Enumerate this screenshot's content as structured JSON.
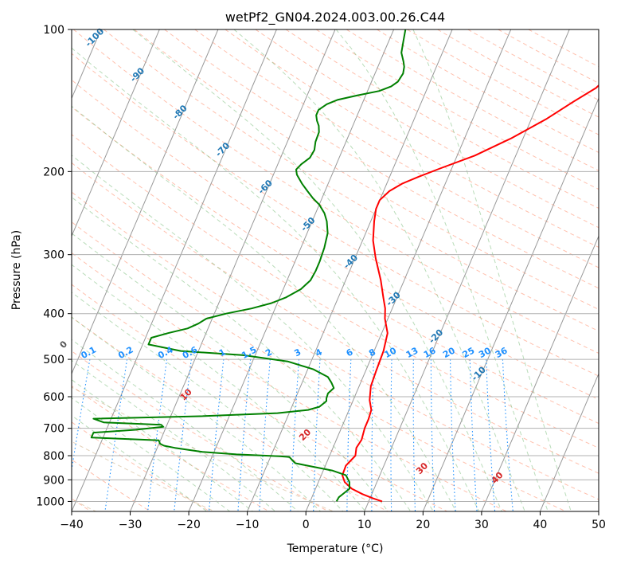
{
  "chart_data": {
    "type": "line",
    "title": "wetPf2_GN04.2024.003.00.26.C44",
    "xlabel": "Temperature (°C)",
    "ylabel": "Pressure (hPa)",
    "xlim": [
      -40,
      50
    ],
    "ylim": [
      1050,
      100
    ],
    "y_scale": "log",
    "grid": true,
    "x_ticks": [
      "−40",
      "−30",
      "−20",
      "−10",
      "0",
      "10",
      "20",
      "30",
      "40",
      "50"
    ],
    "y_ticks": [
      "100",
      "200",
      "300",
      "400",
      "500",
      "600",
      "700",
      "800",
      "900",
      "1000"
    ],
    "series": [
      {
        "color": "#ff0000",
        "points": [
          [
            12.3,
            1000
          ],
          [
            10.5,
            985
          ],
          [
            8.4,
            965
          ],
          [
            6.2,
            940
          ],
          [
            4.5,
            910
          ],
          [
            3.6,
            880
          ],
          [
            3.5,
            840
          ],
          [
            4.4,
            800
          ],
          [
            4.0,
            770
          ],
          [
            4.3,
            740
          ],
          [
            4.0,
            700
          ],
          [
            4.0,
            670
          ],
          [
            3.8,
            640
          ],
          [
            2.8,
            610
          ],
          [
            2.0,
            570
          ],
          [
            1.8,
            530
          ],
          [
            1.6,
            480
          ],
          [
            1.0,
            440
          ],
          [
            -0.5,
            410
          ],
          [
            -1.2,
            390
          ],
          [
            -2.3,
            370
          ],
          [
            -4.0,
            340
          ],
          [
            -6.5,
            305
          ],
          [
            -8.2,
            280
          ],
          [
            -9.4,
            255
          ],
          [
            -10.0,
            240
          ],
          [
            -10.0,
            230
          ],
          [
            -9.0,
            220
          ],
          [
            -7.3,
            212
          ],
          [
            -5.0,
            205
          ],
          [
            -2.0,
            197
          ],
          [
            3.0,
            185
          ],
          [
            8.0,
            170
          ],
          [
            12.5,
            155
          ],
          [
            16.0,
            142
          ],
          [
            18.8,
            133
          ],
          [
            20.3,
            124
          ],
          [
            21.5,
            116
          ],
          [
            24.0,
            109
          ],
          [
            28.2,
            103
          ],
          [
            31.6,
            100
          ]
        ]
      },
      {
        "color": "#008000",
        "points": [
          [
            4.5,
            1000
          ],
          [
            4.6,
            980
          ],
          [
            5.2,
            960
          ],
          [
            5.8,
            940
          ],
          [
            5.3,
            910
          ],
          [
            4.2,
            880
          ],
          [
            1.5,
            860
          ],
          [
            -3.0,
            840
          ],
          [
            -5.3,
            830
          ],
          [
            -6.2,
            815
          ],
          [
            -6.8,
            805
          ],
          [
            -8.5,
            802
          ],
          [
            -16.0,
            795
          ],
          [
            -22.0,
            785
          ],
          [
            -27.0,
            770
          ],
          [
            -29.0,
            762
          ],
          [
            -29.8,
            755
          ],
          [
            -30.3,
            742
          ],
          [
            -42.0,
            732
          ],
          [
            -42.0,
            715
          ],
          [
            -35.0,
            705
          ],
          [
            -30.5,
            695
          ],
          [
            -31.0,
            688
          ],
          [
            -41.0,
            680
          ],
          [
            -43.0,
            668
          ],
          [
            -25.0,
            660
          ],
          [
            -12.0,
            650
          ],
          [
            -7.0,
            640
          ],
          [
            -5.3,
            630
          ],
          [
            -4.5,
            613
          ],
          [
            -4.7,
            605
          ],
          [
            -4.8,
            590
          ],
          [
            -4.2,
            575
          ],
          [
            -5.0,
            560
          ],
          [
            -6.0,
            545
          ],
          [
            -9.0,
            525
          ],
          [
            -14.0,
            505
          ],
          [
            -22.0,
            490
          ],
          [
            -33.0,
            480
          ],
          [
            -39.0,
            465
          ],
          [
            -39.0,
            450
          ],
          [
            -36.5,
            440
          ],
          [
            -33.5,
            430
          ],
          [
            -32.0,
            420
          ],
          [
            -31.0,
            410
          ],
          [
            -28.0,
            400
          ],
          [
            -24.0,
            390
          ],
          [
            -21.0,
            380
          ],
          [
            -19.0,
            370
          ],
          [
            -17.0,
            355
          ],
          [
            -16.0,
            340
          ],
          [
            -15.8,
            325
          ],
          [
            -15.8,
            310
          ],
          [
            -16.0,
            290
          ],
          [
            -16.5,
            270
          ],
          [
            -17.5,
            255
          ],
          [
            -18.5,
            245
          ],
          [
            -20.0,
            235
          ],
          [
            -21.5,
            228
          ],
          [
            -23.0,
            220
          ],
          [
            -24.5,
            212
          ],
          [
            -26.0,
            203
          ],
          [
            -26.5,
            198
          ],
          [
            -26.0,
            193
          ],
          [
            -25.0,
            187
          ],
          [
            -24.8,
            180
          ],
          [
            -25.2,
            173
          ],
          [
            -25.3,
            165
          ],
          [
            -25.8,
            160
          ],
          [
            -26.5,
            156
          ],
          [
            -27.0,
            152
          ],
          [
            -27.0,
            148
          ],
          [
            -26.0,
            144
          ],
          [
            -24.5,
            141
          ],
          [
            -21.5,
            138
          ],
          [
            -18.0,
            135
          ],
          [
            -16.3,
            132
          ],
          [
            -15.5,
            129
          ],
          [
            -15.2,
            124
          ],
          [
            -15.5,
            120
          ],
          [
            -16.0,
            117
          ],
          [
            -17.0,
            112
          ],
          [
            -17.5,
            106
          ],
          [
            -18.0,
            100
          ]
        ]
      }
    ],
    "dry_adiabat_labels": [
      "-100",
      "-90",
      "-80",
      "-70",
      "-60",
      "-50",
      "-40",
      "-30",
      "-20",
      "-10",
      "0",
      "10",
      "20",
      "30",
      "40"
    ],
    "mixing_ratio_labels": [
      "0.1",
      "0.2",
      "0.4",
      "0.6",
      "1",
      "1.5",
      "2",
      "3",
      "4",
      "6",
      "8",
      "10",
      "13",
      "16",
      "20",
      "25",
      "30",
      "36"
    ],
    "reference_line_colors": {
      "isotherm": "#999999",
      "dry_adiabat": "#ff8c69",
      "moist_adiabat": "#7fbf7f",
      "mixing_ratio": "#1e90ff",
      "label_cold": "#1f77b4",
      "label_zero": "#555555",
      "label_warm": "#d62728"
    }
  }
}
